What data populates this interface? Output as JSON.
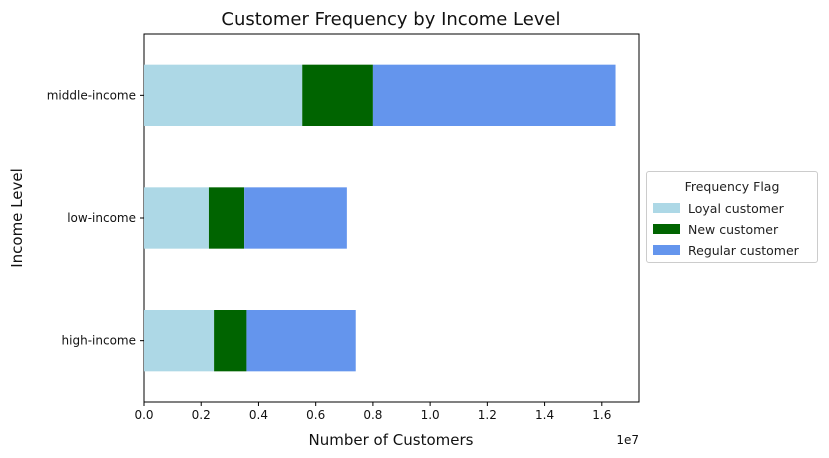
{
  "chart_data": {
    "type": "bar",
    "orientation": "horizontal",
    "stacked": true,
    "title": "Customer Frequency by Income Level",
    "xlabel": "Number of Customers",
    "ylabel": "Income Level",
    "x_scale_label": "1e7",
    "xlim": [
      0,
      17300000
    ],
    "xticks": [
      0,
      2000000,
      4000000,
      6000000,
      8000000,
      10000000,
      12000000,
      14000000,
      16000000
    ],
    "xtick_labels": [
      "0.0",
      "0.2",
      "0.4",
      "0.6",
      "0.8",
      "1.0",
      "1.2",
      "1.4",
      "1.6"
    ],
    "categories": [
      "high-income",
      "low-income",
      "middle-income"
    ],
    "series": [
      {
        "name": "Loyal customer",
        "color": "#add8e6",
        "values": [
          2450000,
          2270000,
          5530000
        ]
      },
      {
        "name": "New customer",
        "color": "#006400",
        "values": [
          1130000,
          1230000,
          2470000
        ]
      },
      {
        "name": "Regular customer",
        "color": "#6495ed",
        "values": [
          3820000,
          3590000,
          8480000
        ]
      }
    ],
    "legend": {
      "title": "Frequency Flag",
      "placement": "center-right outside"
    },
    "grid": false
  }
}
